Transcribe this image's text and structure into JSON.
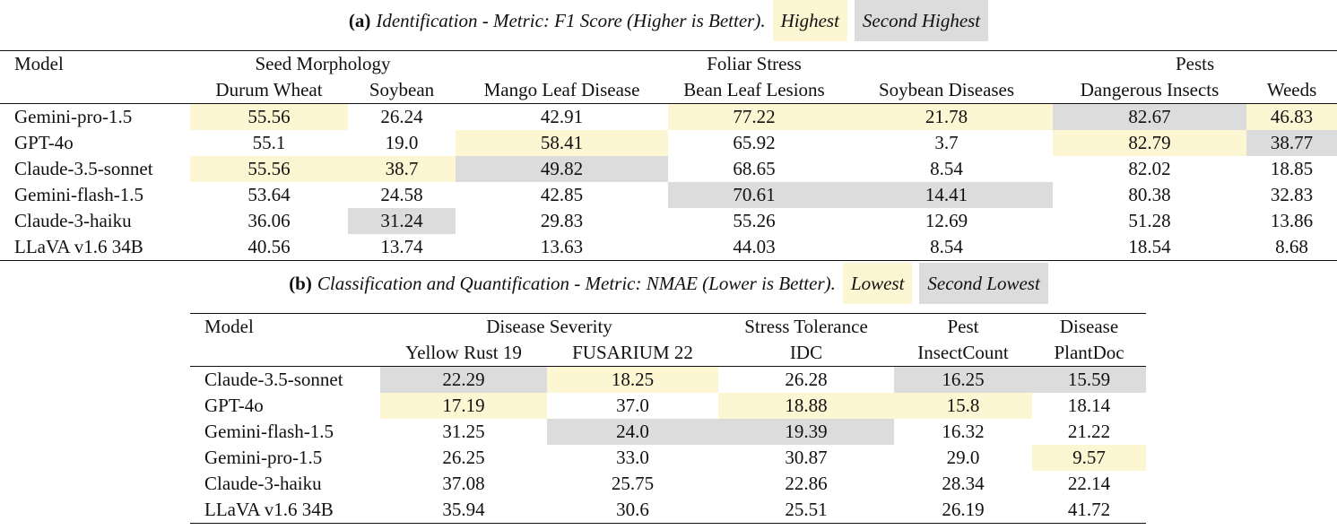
{
  "table_a": {
    "caption": {
      "label": "(a)",
      "text": "Identification - Metric: F1 Score (Higher is Better).",
      "legend_best": "Highest",
      "legend_second": "Second Highest"
    },
    "header_model": "Model",
    "groups": [
      "Seed Morphology",
      "Foliar Stress",
      "Pests"
    ],
    "columns": [
      "Durum Wheat",
      "Soybean",
      "Mango Leaf Disease",
      "Bean Leaf Lesions",
      "Soybean Diseases",
      "Dangerous Insects",
      "Weeds"
    ],
    "rows": [
      {
        "model": "Gemini-pro-1.5",
        "values": [
          "55.56",
          "26.24",
          "42.91",
          "77.22",
          "21.78",
          "82.67",
          "46.83"
        ],
        "highlight": [
          "hi",
          "",
          "",
          "hi",
          "hi",
          "lo",
          "hi"
        ]
      },
      {
        "model": "GPT-4o",
        "values": [
          "55.1",
          "19.0",
          "58.41",
          "65.92",
          "3.7",
          "82.79",
          "38.77"
        ],
        "highlight": [
          "",
          "",
          "hi",
          "",
          "",
          "hi",
          "lo"
        ]
      },
      {
        "model": "Claude-3.5-sonnet",
        "values": [
          "55.56",
          "38.7",
          "49.82",
          "68.65",
          "8.54",
          "82.02",
          "18.85"
        ],
        "highlight": [
          "hi",
          "hi",
          "lo",
          "",
          "",
          "",
          ""
        ]
      },
      {
        "model": "Gemini-flash-1.5",
        "values": [
          "53.64",
          "24.58",
          "42.85",
          "70.61",
          "14.41",
          "80.38",
          "32.83"
        ],
        "highlight": [
          "",
          "",
          "",
          "lo",
          "lo",
          "",
          ""
        ]
      },
      {
        "model": "Claude-3-haiku",
        "values": [
          "36.06",
          "31.24",
          "29.83",
          "55.26",
          "12.69",
          "51.28",
          "13.86"
        ],
        "highlight": [
          "",
          "lo",
          "",
          "",
          "",
          "",
          ""
        ]
      },
      {
        "model": "LLaVA v1.6 34B",
        "values": [
          "40.56",
          "13.74",
          "13.63",
          "44.03",
          "8.54",
          "18.54",
          "8.68"
        ],
        "highlight": [
          "",
          "",
          "",
          "",
          "",
          "",
          ""
        ]
      }
    ]
  },
  "table_b": {
    "caption": {
      "label": "(b)",
      "text": "Classification and Quantification - Metric: NMAE (Lower is Better).",
      "legend_best": "Lowest",
      "legend_second": "Second Lowest"
    },
    "header_model": "Model",
    "groups": [
      "Disease Severity",
      "Stress Tolerance",
      "Pest",
      "Disease"
    ],
    "columns": [
      "Yellow Rust 19",
      "FUSARIUM 22",
      "IDC",
      "InsectCount",
      "PlantDoc"
    ],
    "rows": [
      {
        "model": "Claude-3.5-sonnet",
        "values": [
          "22.29",
          "18.25",
          "26.28",
          "16.25",
          "15.59"
        ],
        "highlight": [
          "lo",
          "hi",
          "",
          "lo",
          "lo"
        ]
      },
      {
        "model": "GPT-4o",
        "values": [
          "17.19",
          "37.0",
          "18.88",
          "15.8",
          "18.14"
        ],
        "highlight": [
          "hi",
          "",
          "hi",
          "hi",
          ""
        ]
      },
      {
        "model": "Gemini-flash-1.5",
        "values": [
          "31.25",
          "24.0",
          "19.39",
          "16.32",
          "21.22"
        ],
        "highlight": [
          "",
          "lo",
          "lo",
          "",
          ""
        ]
      },
      {
        "model": "Gemini-pro-1.5",
        "values": [
          "26.25",
          "33.0",
          "30.87",
          "29.0",
          "9.57"
        ],
        "highlight": [
          "",
          "",
          "",
          "",
          "hi"
        ]
      },
      {
        "model": "Claude-3-haiku",
        "values": [
          "37.08",
          "25.75",
          "22.86",
          "28.34",
          "22.14"
        ],
        "highlight": [
          "",
          "",
          "",
          "",
          ""
        ]
      },
      {
        "model": "LLaVA v1.6 34B",
        "values": [
          "35.94",
          "30.6",
          "25.51",
          "26.19",
          "41.72"
        ],
        "highlight": [
          "",
          "",
          "",
          "",
          ""
        ]
      }
    ]
  }
}
